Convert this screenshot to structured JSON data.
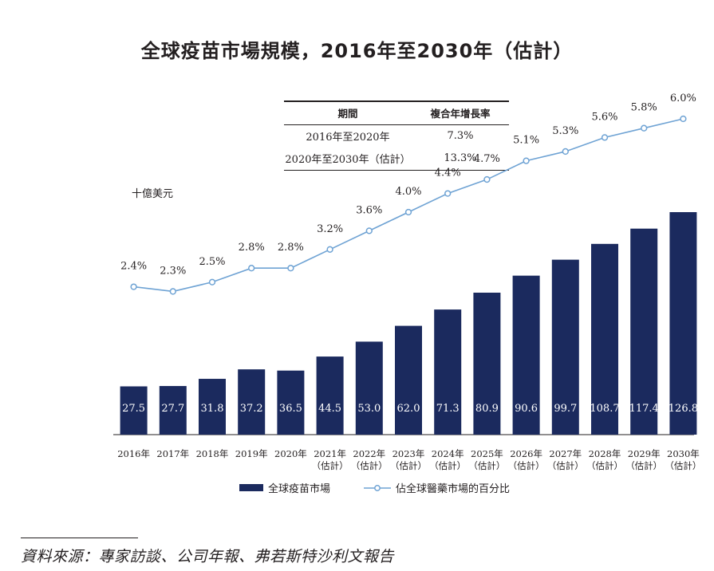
{
  "title": "全球疫苗市場規模，2016年至2030年（估計）",
  "cagr_table": {
    "headers": [
      "期間",
      "複合年增長率"
    ],
    "rows": [
      [
        "2016年至2020年",
        "7.3%"
      ],
      [
        "2020年至2030年（估計）",
        "13.3%"
      ]
    ]
  },
  "unit_label": "十億美元",
  "legend": {
    "bar_label": "全球疫苗市場",
    "line_label": "佔全球醫藥市場的百分比"
  },
  "source": "資料來源：專家訪談、公司年報、弗若斯特沙利文報告",
  "colors": {
    "bar": "#1b2a5e",
    "line": "#6fa3d4",
    "text": "#231f20"
  },
  "chart_data": {
    "type": "bar",
    "categories": [
      "2016年",
      "2017年",
      "2018年",
      "2019年",
      "2020年",
      "2021年",
      "2022年",
      "2023年",
      "2024年",
      "2025年",
      "2026年",
      "2027年",
      "2028年",
      "2029年",
      "2030年"
    ],
    "category_sublabels": [
      "",
      "",
      "",
      "",
      "",
      "（估計）",
      "（估計）",
      "（估計）",
      "（估計）",
      "（估計）",
      "（估計）",
      "（估計）",
      "（估計）",
      "（估計）",
      "（估計）"
    ],
    "series": [
      {
        "name": "全球疫苗市場",
        "type": "bar",
        "values": [
          27.5,
          27.7,
          31.8,
          37.2,
          36.5,
          44.5,
          53.0,
          62.0,
          71.3,
          80.9,
          90.6,
          99.7,
          108.7,
          117.4,
          126.8
        ],
        "labels": [
          "27.5",
          "27.7",
          "31.8",
          "37.2",
          "36.5",
          "44.5",
          "53.0",
          "62.0",
          "71.3",
          "80.9",
          "90.6",
          "99.7",
          "108.7",
          "117.4",
          "126.8"
        ]
      },
      {
        "name": "佔全球醫藥市場的百分比",
        "type": "line",
        "values": [
          2.4,
          2.3,
          2.5,
          2.8,
          2.8,
          3.2,
          3.6,
          4.0,
          4.4,
          4.7,
          5.1,
          5.3,
          5.6,
          5.8,
          6.0
        ],
        "labels": [
          "2.4%",
          "2.3%",
          "2.5%",
          "2.8%",
          "2.8%",
          "3.2%",
          "3.6%",
          "4.0%",
          "4.4%",
          "4.7%",
          "5.1%",
          "5.3%",
          "5.6%",
          "5.8%",
          "6.0%"
        ]
      }
    ],
    "ylabel": "十億美元",
    "grid": false,
    "legend_position": "bottom"
  }
}
